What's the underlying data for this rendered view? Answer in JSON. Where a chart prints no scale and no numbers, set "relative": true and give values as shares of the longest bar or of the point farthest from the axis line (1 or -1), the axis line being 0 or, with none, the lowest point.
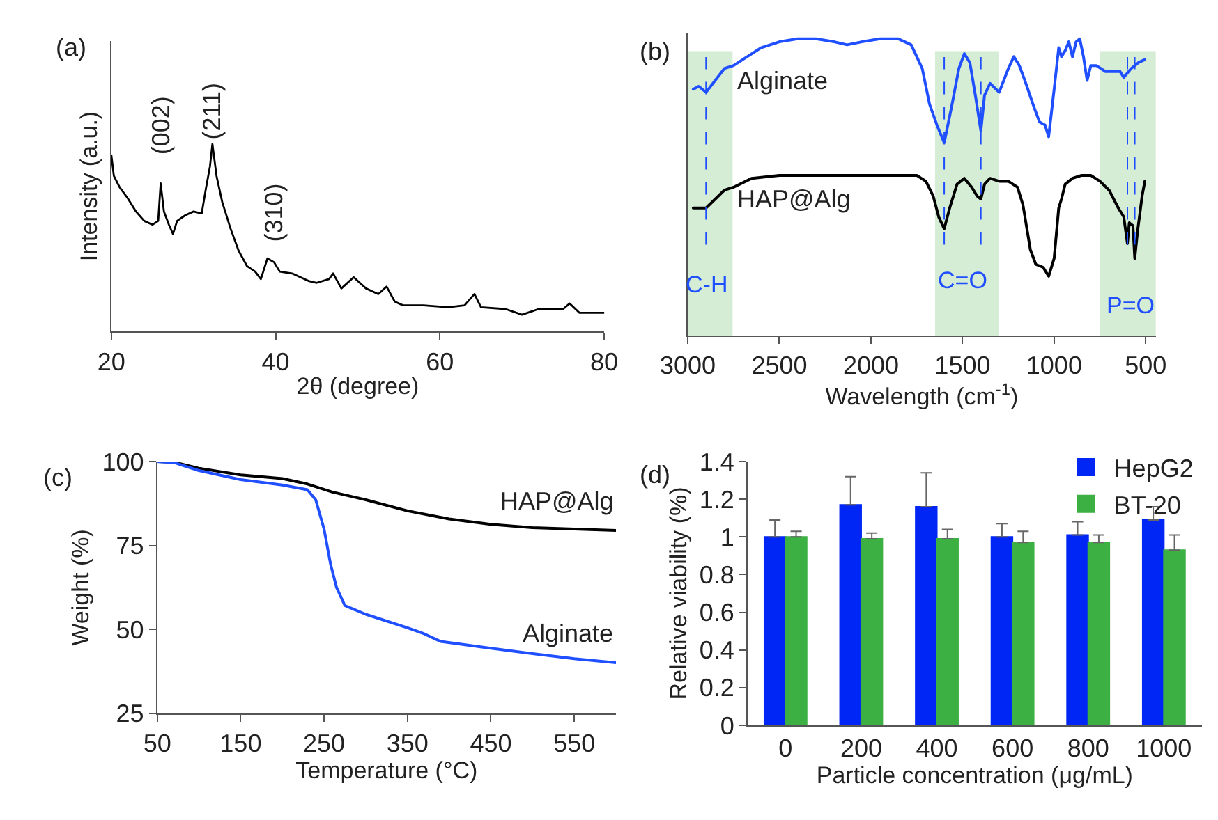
{
  "chart_data": [
    {
      "type": "line",
      "title": "(a)",
      "xlabel": "2θ (degree)",
      "ylabel": "Intensity (a.u.)",
      "relative": true,
      "grid": false,
      "legend": false,
      "tick_labels": "x",
      "xlim": [
        20,
        80
      ],
      "xticks": [
        20,
        40,
        60,
        80
      ],
      "x": [
        20,
        20.3,
        21,
        22,
        23,
        24,
        25,
        25.7,
        26,
        26.4,
        27,
        27.5,
        28,
        29,
        30,
        31,
        31.5,
        32,
        32.3,
        32.8,
        33.5,
        34.5,
        35.5,
        36.5,
        37.5,
        38.2,
        39,
        39.8,
        40.5,
        42,
        44,
        45,
        46.5,
        47,
        48,
        49.5,
        51,
        52.5,
        53.5,
        54.5,
        55.5,
        58,
        61,
        63,
        64.2,
        65,
        68,
        70,
        72,
        75,
        75.8,
        77,
        80
      ],
      "series": [
        {
          "color": "#000000",
          "values": [
            0.94,
            0.83,
            0.77,
            0.71,
            0.64,
            0.59,
            0.57,
            0.59,
            0.79,
            0.64,
            0.57,
            0.52,
            0.59,
            0.62,
            0.64,
            0.63,
            0.76,
            0.88,
            1.0,
            0.83,
            0.69,
            0.55,
            0.43,
            0.35,
            0.32,
            0.28,
            0.39,
            0.37,
            0.32,
            0.31,
            0.27,
            0.26,
            0.28,
            0.31,
            0.23,
            0.29,
            0.23,
            0.2,
            0.24,
            0.16,
            0.14,
            0.14,
            0.13,
            0.14,
            0.2,
            0.13,
            0.12,
            0.09,
            0.12,
            0.12,
            0.15,
            0.1,
            0.1
          ]
        }
      ],
      "annotations": [
        "(002)",
        "(211)",
        "(310)"
      ]
    },
    {
      "type": "line",
      "title": "(b)",
      "xlabel": "Wavelength (cm$^{-1}$)",
      "relative": true,
      "grid": false,
      "legend": false,
      "tick_labels": "x",
      "xlim": [
        3000,
        445
      ],
      "xticks": [
        3000,
        2500,
        2000,
        1500,
        1000,
        500
      ],
      "series": [
        {
          "name": "Alginate",
          "color": "#1f4fff",
          "x": [
            2970,
            2940,
            2900,
            2850,
            2800,
            2750,
            2700,
            2600,
            2500,
            2400,
            2300,
            2200,
            2130,
            2050,
            1950,
            1850,
            1780,
            1720,
            1680,
            1640,
            1600,
            1560,
            1520,
            1490,
            1460,
            1430,
            1400,
            1380,
            1350,
            1300,
            1250,
            1220,
            1190,
            1160,
            1110,
            1080,
            1050,
            1030,
            1000,
            975,
            960,
            940,
            920,
            900,
            880,
            860,
            840,
            820,
            800,
            770,
            720,
            680,
            640,
            620,
            580,
            540,
            505
          ],
          "values": [
            0.83,
            0.84,
            0.82,
            0.86,
            0.9,
            0.91,
            0.93,
            0.97,
            0.99,
            1.0,
            1.0,
            0.99,
            0.98,
            0.99,
            1.0,
            1.0,
            0.98,
            0.9,
            0.78,
            0.71,
            0.65,
            0.77,
            0.9,
            0.95,
            0.92,
            0.81,
            0.69,
            0.81,
            0.85,
            0.82,
            0.9,
            0.94,
            0.91,
            0.86,
            0.77,
            0.72,
            0.71,
            0.67,
            0.83,
            0.97,
            0.94,
            0.96,
            0.99,
            0.94,
            0.99,
            1.0,
            0.94,
            0.86,
            0.91,
            0.91,
            0.89,
            0.89,
            0.89,
            0.87,
            0.9,
            0.92,
            0.93
          ]
        },
        {
          "name": "HAP@Alg",
          "color": "#000000",
          "x": [
            2970,
            2900,
            2850,
            2800,
            2750,
            2650,
            2500,
            2300,
            2100,
            1900,
            1750,
            1700,
            1660,
            1630,
            1600,
            1570,
            1530,
            1490,
            1450,
            1420,
            1400,
            1380,
            1350,
            1300,
            1250,
            1200,
            1170,
            1130,
            1100,
            1060,
            1030,
            1000,
            975,
            960,
            940,
            900,
            850,
            800,
            750,
            700,
            650,
            620,
            600,
            590,
            570,
            560,
            545,
            520,
            505
          ],
          "values": [
            0.43,
            0.43,
            0.46,
            0.49,
            0.5,
            0.53,
            0.54,
            0.54,
            0.54,
            0.54,
            0.54,
            0.52,
            0.47,
            0.4,
            0.36,
            0.43,
            0.51,
            0.53,
            0.5,
            0.47,
            0.46,
            0.51,
            0.53,
            0.52,
            0.52,
            0.5,
            0.44,
            0.29,
            0.24,
            0.23,
            0.2,
            0.26,
            0.43,
            0.46,
            0.51,
            0.53,
            0.54,
            0.54,
            0.52,
            0.49,
            0.43,
            0.4,
            0.31,
            0.38,
            0.37,
            0.26,
            0.35,
            0.47,
            0.52
          ]
        }
      ],
      "bands": [
        {
          "axis": "x",
          "from": 3000,
          "to": 2755,
          "color": "#d5ecd5"
        },
        {
          "axis": "x",
          "from": 1650,
          "to": 1300,
          "color": "#d5ecd5"
        },
        {
          "axis": "x",
          "from": 750,
          "to": 445,
          "color": "#d5ecd5"
        }
      ],
      "ref_lines": [
        {
          "axis": "x",
          "value": 2900,
          "color": "#1f4fff",
          "line_style": "dashed"
        },
        {
          "axis": "x",
          "value": 1600,
          "color": "#1f4fff",
          "line_style": "dashed"
        },
        {
          "axis": "x",
          "value": 1400,
          "color": "#1f4fff",
          "line_style": "dashed"
        },
        {
          "axis": "x",
          "value": 600,
          "color": "#1f4fff",
          "line_style": "dashed"
        },
        {
          "axis": "x",
          "value": 560,
          "color": "#1f4fff",
          "line_style": "dashed"
        }
      ],
      "annotations": [
        "C-H",
        "C=O",
        "P=O"
      ]
    },
    {
      "type": "line",
      "title": "(c)",
      "xlabel": "Temperature (°C)",
      "ylabel": "Weight (%)",
      "grid": false,
      "legend": false,
      "xlim": [
        50,
        600
      ],
      "xticks": [
        50,
        150,
        250,
        350,
        450,
        550
      ],
      "ylim": [
        25,
        100
      ],
      "yticks": [
        25,
        50,
        75,
        100
      ],
      "series": [
        {
          "name": "HAP@Alg",
          "color": "#000000",
          "x": [
            50,
            70,
            100,
            150,
            200,
            230,
            260,
            300,
            350,
            400,
            450,
            500,
            550,
            600
          ],
          "values": [
            100,
            99.8,
            98,
            96,
            94.9,
            93.3,
            90.9,
            88.6,
            85.3,
            82.9,
            81.3,
            80.3,
            79.9,
            79.5
          ]
        },
        {
          "name": "Alginate",
          "color": "#1f4fff",
          "x": [
            50,
            70,
            100,
            150,
            200,
            230,
            240,
            250,
            258,
            265,
            275,
            300,
            350,
            370,
            390,
            450,
            500,
            550,
            600
          ],
          "values": [
            100,
            99.7,
            97.3,
            94.6,
            93,
            91.6,
            88.6,
            79.9,
            69.2,
            62.5,
            57.1,
            54.5,
            50.5,
            48.7,
            46.4,
            44.4,
            42.8,
            41.3,
            40.1
          ]
        }
      ]
    },
    {
      "type": "bar",
      "title": "(d)",
      "xlabel": "Particle concentration (μg/mL)",
      "ylabel": "Relative viability (%)",
      "grid": false,
      "legend": "top right",
      "categories": [
        "0",
        "200",
        "400",
        "600",
        "800",
        "1000"
      ],
      "ylim": [
        0,
        1.4
      ],
      "yticks": [
        0,
        0.2,
        0.4,
        0.6,
        0.8,
        1,
        1.2,
        1.4
      ],
      "series": [
        {
          "name": "HepG2",
          "color": "#0026f5",
          "values": [
            1.0,
            1.17,
            1.16,
            1.0,
            1.01,
            1.09
          ],
          "errors": [
            [
              1.0,
              1.09
            ],
            [
              1.17,
              1.32
            ],
            [
              1.16,
              1.34
            ],
            [
              1.0,
              1.07
            ],
            [
              1.01,
              1.08
            ],
            [
              1.09,
              1.16
            ]
          ]
        },
        {
          "name": "BT-20",
          "color": "#3cb043",
          "values": [
            1.0,
            0.99,
            0.99,
            0.97,
            0.97,
            0.93
          ],
          "errors": [
            [
              1.0,
              1.03
            ],
            [
              0.99,
              1.02
            ],
            [
              0.99,
              1.04
            ],
            [
              0.97,
              1.03
            ],
            [
              0.97,
              1.01
            ],
            [
              0.93,
              1.01
            ]
          ]
        }
      ]
    }
  ]
}
